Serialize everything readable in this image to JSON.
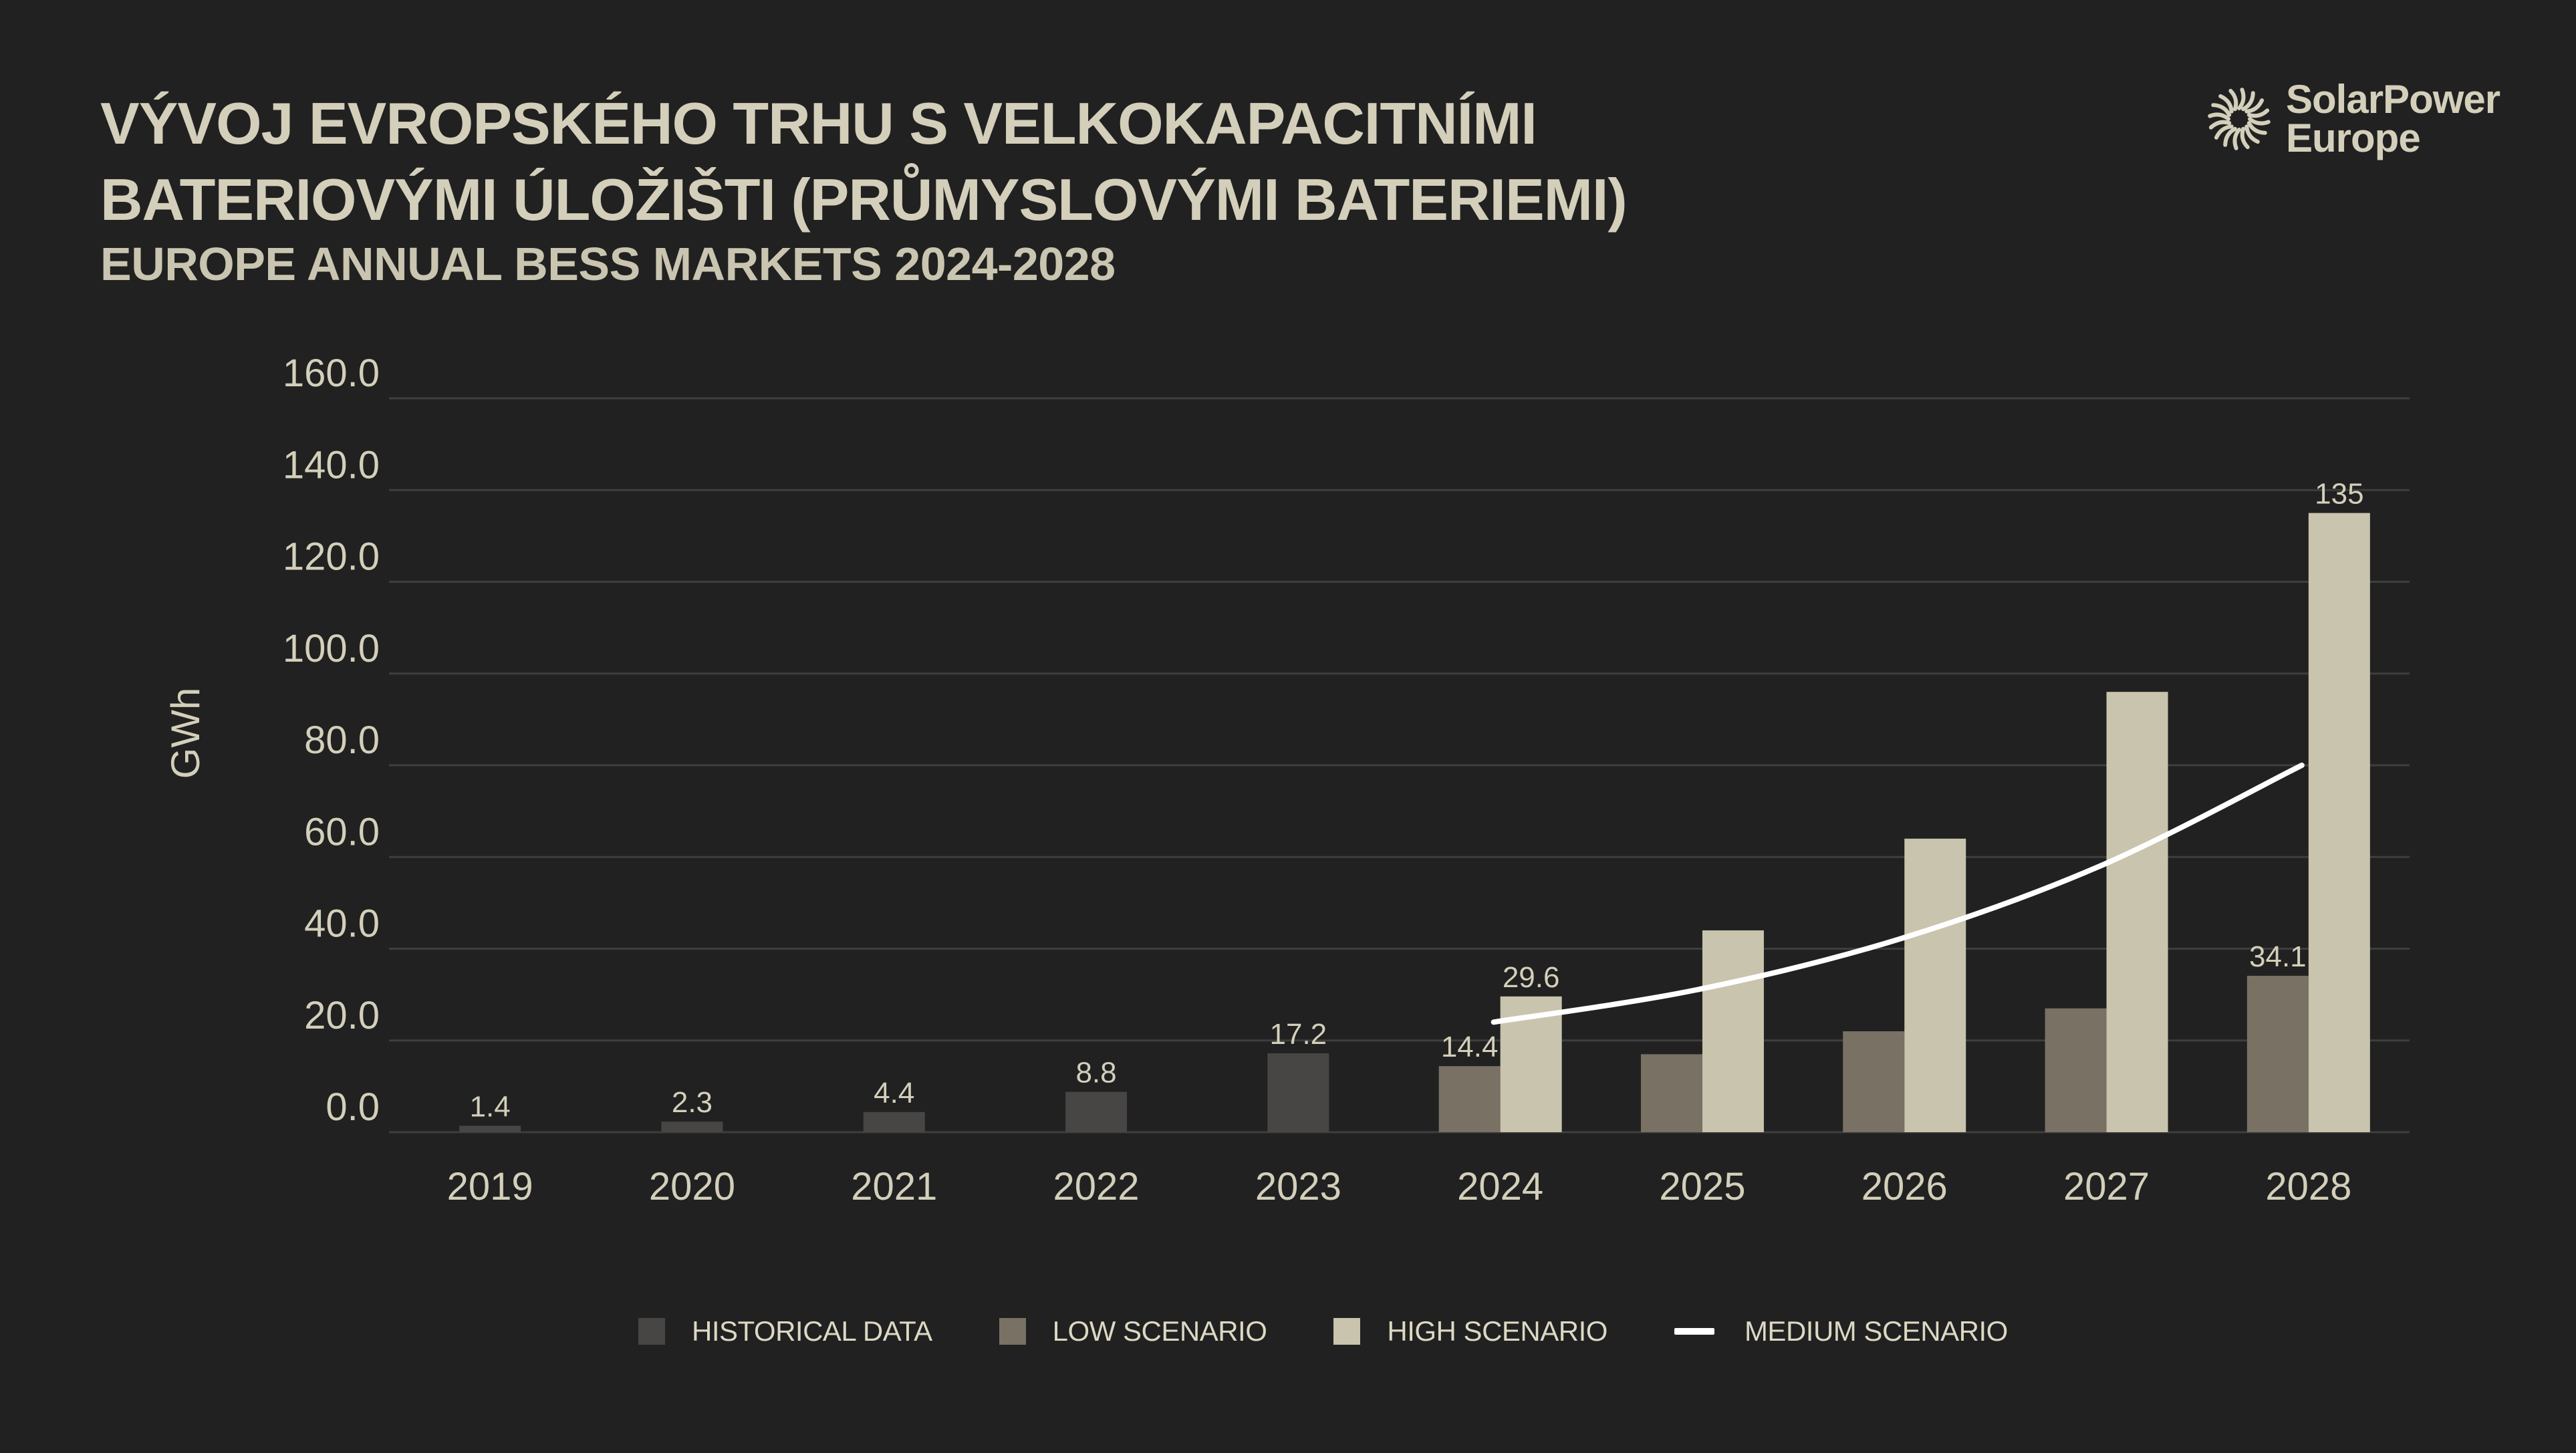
{
  "header": {
    "title_line1": "VÝVOJ EVROPSKÉHO TRHU S VELKOKAPACITNÍMI",
    "title_line2": "BATERIOVÝMI ÚLOŽIŠTI (PRŮMYSLOVÝMI BATERIEMI)",
    "subtitle": "EUROPE ANNUAL BESS MARKETS 2024-2028"
  },
  "logo": {
    "line1": "SolarPower",
    "line2": "Europe",
    "icon": "sun-burst-icon"
  },
  "legend": {
    "historical": "HISTORICAL DATA",
    "low": "LOW SCENARIO",
    "high": "HIGH SCENARIO",
    "medium": "MEDIUM SCENARIO"
  },
  "colors": {
    "historical": "#474644",
    "low": "#787164",
    "high": "#c8c4ad",
    "medium": "#ffffff",
    "grid": "#3e3e3e",
    "text": "#d3cfba"
  },
  "chart_data": {
    "type": "bar",
    "title": "VÝVOJ EVROPSKÉHO TRHU S VELKOKAPACITNÍMI BATERIOVÝMI ÚLOŽIŠTI (PRŮMYSLOVÝMI BATERIEMI)",
    "subtitle": "EUROPE ANNUAL BESS MARKETS 2024-2028",
    "xlabel": "",
    "ylabel": "GWh",
    "ylim": [
      0,
      160
    ],
    "yticks": [
      "0.0",
      "20.0",
      "40.0",
      "60.0",
      "80.0",
      "100.0",
      "120.0",
      "140.0",
      "160.0"
    ],
    "grid": true,
    "legend_position": "bottom",
    "categories": [
      "2019",
      "2020",
      "2021",
      "2022",
      "2023",
      "2024",
      "2025",
      "2026",
      "2027",
      "2028"
    ],
    "series": [
      {
        "name": "HISTORICAL DATA",
        "kind": "bar",
        "values": [
          1.4,
          2.3,
          4.4,
          8.8,
          17.2,
          null,
          null,
          null,
          null,
          null
        ],
        "labels": [
          "1.4",
          "2.3",
          "4.4",
          "8.8",
          "17.2",
          "",
          "",
          "",
          "",
          ""
        ]
      },
      {
        "name": "LOW SCENARIO",
        "kind": "bar",
        "values": [
          null,
          null,
          null,
          null,
          null,
          14.4,
          17,
          22,
          27,
          34.1
        ],
        "labels": [
          "",
          "",
          "",
          "",
          "",
          "14.4",
          "",
          "",
          "",
          "34.1"
        ]
      },
      {
        "name": "HIGH SCENARIO",
        "kind": "bar",
        "values": [
          null,
          null,
          null,
          null,
          null,
          29.6,
          44,
          64,
          96,
          135
        ],
        "labels": [
          "",
          "",
          "",
          "",
          "",
          "29.6",
          "",
          "",
          "",
          "135"
        ]
      },
      {
        "name": "MEDIUM SCENARIO",
        "kind": "line",
        "values": [
          null,
          null,
          null,
          null,
          null,
          24,
          31,
          42,
          58,
          80
        ]
      }
    ]
  }
}
